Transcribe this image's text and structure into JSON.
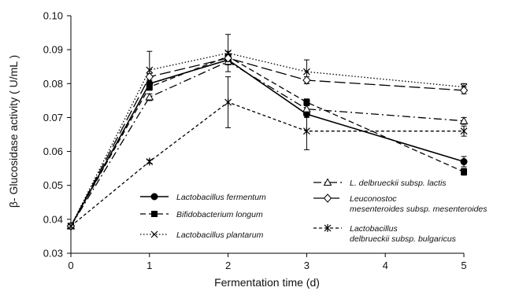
{
  "chart_data": {
    "type": "line",
    "xlabel": "Fermentation time (d)",
    "ylabel": "β- Glucosidase activity ( U/mL )",
    "xlim": [
      0,
      5
    ],
    "ylim": [
      0.03,
      0.1
    ],
    "x_ticks": [
      "0",
      "1",
      "2",
      "3",
      "4",
      "5"
    ],
    "y_ticks": [
      "0.03",
      "0.04",
      "0.05",
      "0.06",
      "0.07",
      "0.08",
      "0.09",
      "0.10"
    ],
    "grid": false,
    "x": [
      0,
      1,
      2,
      3,
      5
    ],
    "series": [
      {
        "name": "Lactobacillus fermentum",
        "legend_lines": [
          "Lactobacillus  fermentum"
        ],
        "marker": "circle-filled",
        "line": "solid",
        "values": [
          0.038,
          0.08,
          0.087,
          0.071,
          0.057
        ],
        "errors": [
          0,
          0.001,
          0.001,
          0.001,
          0.0015
        ]
      },
      {
        "name": "Bifidobacterium longum",
        "legend_lines": [
          "Bifidobacterium longum"
        ],
        "marker": "square-filled",
        "line": "dashed",
        "values": [
          0.038,
          0.079,
          0.088,
          0.0745,
          0.054
        ],
        "errors": [
          0,
          0.001,
          0.0015,
          0.001,
          0.001
        ]
      },
      {
        "name": "Lactobacillus plantarum",
        "legend_lines": [
          "Lactobacillus plantarum"
        ],
        "marker": "x",
        "line": "dotted",
        "values": [
          0.038,
          0.084,
          0.089,
          0.0835,
          0.079
        ],
        "errors": [
          0,
          0.0055,
          0.0055,
          0.0035,
          0.001
        ]
      },
      {
        "name": "L. delbrueckii subsp. lactis",
        "legend_lines": [
          "L. delbrueckii subsp. lactis"
        ],
        "marker": "triangle-open",
        "line": "dashdot",
        "values": [
          0.038,
          0.076,
          0.0865,
          0.0725,
          0.069
        ],
        "errors": [
          0,
          0.001,
          0.001,
          0.001,
          0.001
        ]
      },
      {
        "name": "Leuconostoc mesenteroides subsp. mesenteroides",
        "legend_lines": [
          "Leuconostoc",
          "mesenteroides subsp. mesenteroides"
        ],
        "marker": "diamond-open",
        "line": "longdash",
        "values": [
          0.038,
          0.082,
          0.0875,
          0.081,
          0.078
        ],
        "errors": [
          0,
          0.001,
          0.001,
          0.001,
          0.001
        ]
      },
      {
        "name": "Lactobacillus delbrueckii subsp. bulgaricus",
        "legend_lines": [
          "Lactobacillus",
          "delbrueckii subsp. bulgaricus"
        ],
        "marker": "asterisk",
        "line": "shortdash",
        "values": [
          0.038,
          0.057,
          0.0745,
          0.066,
          0.066
        ],
        "errors": [
          0,
          0.0005,
          0.0075,
          0.0055,
          0.0015
        ]
      }
    ],
    "legend_position": "inside bottom, two columns"
  }
}
